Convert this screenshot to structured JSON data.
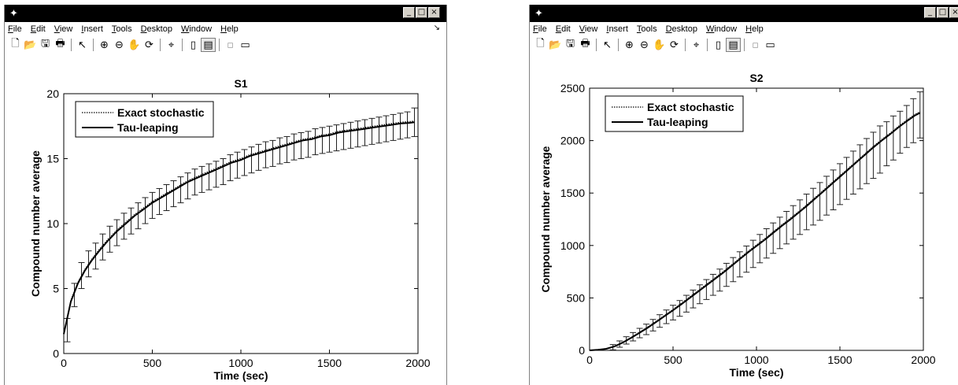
{
  "windows": [
    {
      "menu": [
        {
          "u": "F",
          "rest": "ile"
        },
        {
          "u": "E",
          "rest": "dit"
        },
        {
          "u": "V",
          "rest": "iew"
        },
        {
          "u": "I",
          "rest": "nsert"
        },
        {
          "u": "T",
          "rest": "ools"
        },
        {
          "u": "D",
          "rest": "esktop"
        },
        {
          "u": "W",
          "rest": "indow"
        },
        {
          "u": "H",
          "rest": "elp"
        }
      ]
    },
    {
      "menu": [
        {
          "u": "F",
          "rest": "ile"
        },
        {
          "u": "E",
          "rest": "dit"
        },
        {
          "u": "V",
          "rest": "iew"
        },
        {
          "u": "I",
          "rest": "nsert"
        },
        {
          "u": "T",
          "rest": "ools"
        },
        {
          "u": "D",
          "rest": "esktop"
        },
        {
          "u": "W",
          "rest": "indow"
        },
        {
          "u": "H",
          "rest": "elp"
        }
      ]
    }
  ],
  "toolbar_icons": [
    "new-figure-icon",
    "open-file-icon",
    "save-icon",
    "print-icon",
    "sep",
    "pointer-icon",
    "sep",
    "zoom-in-icon",
    "zoom-out-icon",
    "pan-icon",
    "rotate-3d-icon",
    "sep",
    "data-cursor-icon",
    "sep",
    "colorbar-icon",
    "legend-icon",
    "sep",
    "hide-plot-tools-icon",
    "show-plot-tools-icon"
  ],
  "chart_data": [
    {
      "type": "line",
      "title": "S1",
      "xlabel": "Time (sec)",
      "ylabel": "Compound number average",
      "xlim": [
        0,
        2000
      ],
      "ylim": [
        0,
        20
      ],
      "xticks": [
        0,
        500,
        1000,
        1500,
        2000
      ],
      "yticks": [
        0,
        5,
        10,
        15,
        20
      ],
      "grid": false,
      "legend_position": "top-left",
      "series": [
        {
          "name": "Exact stochastic",
          "style": "dotted",
          "x": [
            0,
            40,
            80,
            120,
            160,
            200,
            250,
            300,
            350,
            400,
            450,
            500,
            550,
            600,
            650,
            700,
            750,
            800,
            850,
            900,
            950,
            1000,
            1050,
            1100,
            1150,
            1200,
            1250,
            1300,
            1350,
            1400,
            1450,
            1500,
            1550,
            1600,
            1650,
            1700,
            1750,
            1800,
            1850,
            1900,
            1950,
            1980
          ],
          "y": [
            1.5,
            4.1,
            5.5,
            6.5,
            7.3,
            8.0,
            8.8,
            9.5,
            10.1,
            10.7,
            11.2,
            11.7,
            12.1,
            12.5,
            12.9,
            13.3,
            13.6,
            13.9,
            14.2,
            14.5,
            14.8,
            15.0,
            15.3,
            15.5,
            15.7,
            15.9,
            16.1,
            16.3,
            16.5,
            16.6,
            16.8,
            16.9,
            17.1,
            17.2,
            17.3,
            17.4,
            17.5,
            17.6,
            17.7,
            17.8,
            17.85,
            17.9
          ]
        },
        {
          "name": "Tau-leaping",
          "style": "solid",
          "x": [
            0,
            40,
            80,
            120,
            160,
            200,
            250,
            300,
            350,
            400,
            450,
            500,
            550,
            600,
            650,
            700,
            750,
            800,
            850,
            900,
            950,
            1000,
            1050,
            1100,
            1150,
            1200,
            1250,
            1300,
            1350,
            1400,
            1450,
            1500,
            1550,
            1600,
            1650,
            1700,
            1750,
            1800,
            1850,
            1900,
            1950,
            1980
          ],
          "y": [
            1.5,
            4.0,
            5.4,
            6.4,
            7.2,
            7.9,
            8.7,
            9.4,
            10.0,
            10.6,
            11.1,
            11.6,
            12.0,
            12.4,
            12.8,
            13.2,
            13.5,
            13.8,
            14.1,
            14.4,
            14.7,
            14.9,
            15.2,
            15.4,
            15.6,
            15.8,
            16.0,
            16.2,
            16.4,
            16.5,
            16.7,
            16.8,
            17.0,
            17.1,
            17.2,
            17.3,
            17.4,
            17.5,
            17.6,
            17.7,
            17.75,
            17.8
          ]
        }
      ],
      "error_bars": {
        "x": [
          20,
          60,
          100,
          140,
          180,
          220,
          260,
          300,
          340,
          380,
          420,
          460,
          500,
          540,
          580,
          620,
          660,
          700,
          740,
          780,
          820,
          860,
          900,
          940,
          980,
          1020,
          1060,
          1100,
          1140,
          1180,
          1220,
          1260,
          1300,
          1340,
          1380,
          1420,
          1460,
          1500,
          1540,
          1580,
          1620,
          1660,
          1700,
          1740,
          1780,
          1820,
          1860,
          1900,
          1940,
          1980
        ],
        "y": [
          1.8,
          4.5,
          6.0,
          6.9,
          7.5,
          8.2,
          8.8,
          9.3,
          9.8,
          10.2,
          10.6,
          11.0,
          11.4,
          11.7,
          12.0,
          12.3,
          12.6,
          12.9,
          13.2,
          13.4,
          13.6,
          13.8,
          14.0,
          14.3,
          14.5,
          14.7,
          14.9,
          15.1,
          15.3,
          15.4,
          15.6,
          15.7,
          15.9,
          16.0,
          16.1,
          16.3,
          16.4,
          16.5,
          16.6,
          16.7,
          16.8,
          16.9,
          17.0,
          17.1,
          17.2,
          17.3,
          17.4,
          17.5,
          17.6,
          17.8
        ],
        "err": [
          0.9,
          0.9,
          1.0,
          1.0,
          1.0,
          1.0,
          1.0,
          1.0,
          1.0,
          1.0,
          1.0,
          1.0,
          1.0,
          1.0,
          1.0,
          1.0,
          1.0,
          1.0,
          1.0,
          1.0,
          1.0,
          1.0,
          1.0,
          1.0,
          1.0,
          1.0,
          1.0,
          1.0,
          1.0,
          1.0,
          1.0,
          1.0,
          1.0,
          1.0,
          1.0,
          1.0,
          1.0,
          1.0,
          1.0,
          1.0,
          1.0,
          1.0,
          1.0,
          1.0,
          1.0,
          1.0,
          1.0,
          1.0,
          1.0,
          1.1
        ]
      }
    },
    {
      "type": "line",
      "title": "S2",
      "xlabel": "Time (sec)",
      "ylabel": "Compound number average",
      "xlim": [
        0,
        2000
      ],
      "ylim": [
        0,
        2500
      ],
      "xticks": [
        0,
        500,
        1000,
        1500,
        2000
      ],
      "yticks": [
        0,
        500,
        1000,
        1500,
        2000,
        2500
      ],
      "grid": false,
      "legend_position": "top-left",
      "series": [
        {
          "name": "Exact stochastic",
          "style": "dotted",
          "x": [
            0,
            50,
            100,
            150,
            200,
            250,
            300,
            350,
            400,
            450,
            500,
            550,
            600,
            650,
            700,
            750,
            800,
            850,
            900,
            950,
            1000,
            1050,
            1100,
            1150,
            1200,
            1250,
            1300,
            1350,
            1400,
            1450,
            1500,
            1550,
            1600,
            1650,
            1700,
            1750,
            1800,
            1850,
            1900,
            1950,
            1980
          ],
          "y": [
            0,
            5,
            15,
            40,
            80,
            125,
            175,
            225,
            280,
            335,
            390,
            450,
            510,
            570,
            630,
            690,
            750,
            815,
            880,
            945,
            1005,
            1065,
            1130,
            1195,
            1255,
            1320,
            1385,
            1455,
            1525,
            1595,
            1665,
            1735,
            1805,
            1875,
            1945,
            2010,
            2070,
            2135,
            2195,
            2250,
            2275
          ]
        },
        {
          "name": "Tau-leaping",
          "style": "solid",
          "x": [
            0,
            50,
            100,
            150,
            200,
            250,
            300,
            350,
            400,
            450,
            500,
            550,
            600,
            650,
            700,
            750,
            800,
            850,
            900,
            950,
            1000,
            1050,
            1100,
            1150,
            1200,
            1250,
            1300,
            1350,
            1400,
            1450,
            1500,
            1550,
            1600,
            1650,
            1700,
            1750,
            1800,
            1850,
            1900,
            1950,
            1980
          ],
          "y": [
            0,
            5,
            15,
            38,
            75,
            120,
            168,
            218,
            272,
            327,
            382,
            440,
            500,
            560,
            620,
            680,
            740,
            805,
            870,
            935,
            995,
            1055,
            1120,
            1185,
            1245,
            1310,
            1375,
            1445,
            1515,
            1585,
            1655,
            1725,
            1795,
            1865,
            1935,
            2000,
            2060,
            2125,
            2185,
            2240,
            2265
          ]
        }
      ],
      "error_bars": {
        "x": [
          140,
          180,
          220,
          260,
          300,
          340,
          380,
          420,
          460,
          500,
          540,
          580,
          620,
          660,
          700,
          740,
          780,
          820,
          860,
          900,
          940,
          980,
          1020,
          1060,
          1100,
          1140,
          1180,
          1220,
          1260,
          1300,
          1340,
          1380,
          1420,
          1460,
          1500,
          1540,
          1580,
          1620,
          1660,
          1700,
          1740,
          1780,
          1820,
          1860,
          1900,
          1940,
          1980
        ],
        "y": [
          30,
          60,
          95,
          130,
          165,
          200,
          240,
          280,
          320,
          360,
          400,
          445,
          490,
          535,
          580,
          625,
          670,
          720,
          770,
          820,
          870,
          920,
          970,
          1020,
          1070,
          1120,
          1170,
          1220,
          1270,
          1320,
          1370,
          1420,
          1475,
          1530,
          1585,
          1640,
          1695,
          1750,
          1805,
          1860,
          1915,
          1970,
          2025,
          2080,
          2135,
          2190,
          2245
        ],
        "err": [
          25,
          30,
          35,
          40,
          45,
          50,
          55,
          60,
          65,
          70,
          75,
          80,
          85,
          90,
          95,
          100,
          105,
          110,
          115,
          120,
          125,
          130,
          135,
          140,
          145,
          150,
          155,
          160,
          165,
          170,
          175,
          180,
          185,
          190,
          195,
          200,
          205,
          210,
          215,
          220,
          225,
          210,
          210,
          200,
          200,
          210,
          220
        ]
      }
    }
  ]
}
